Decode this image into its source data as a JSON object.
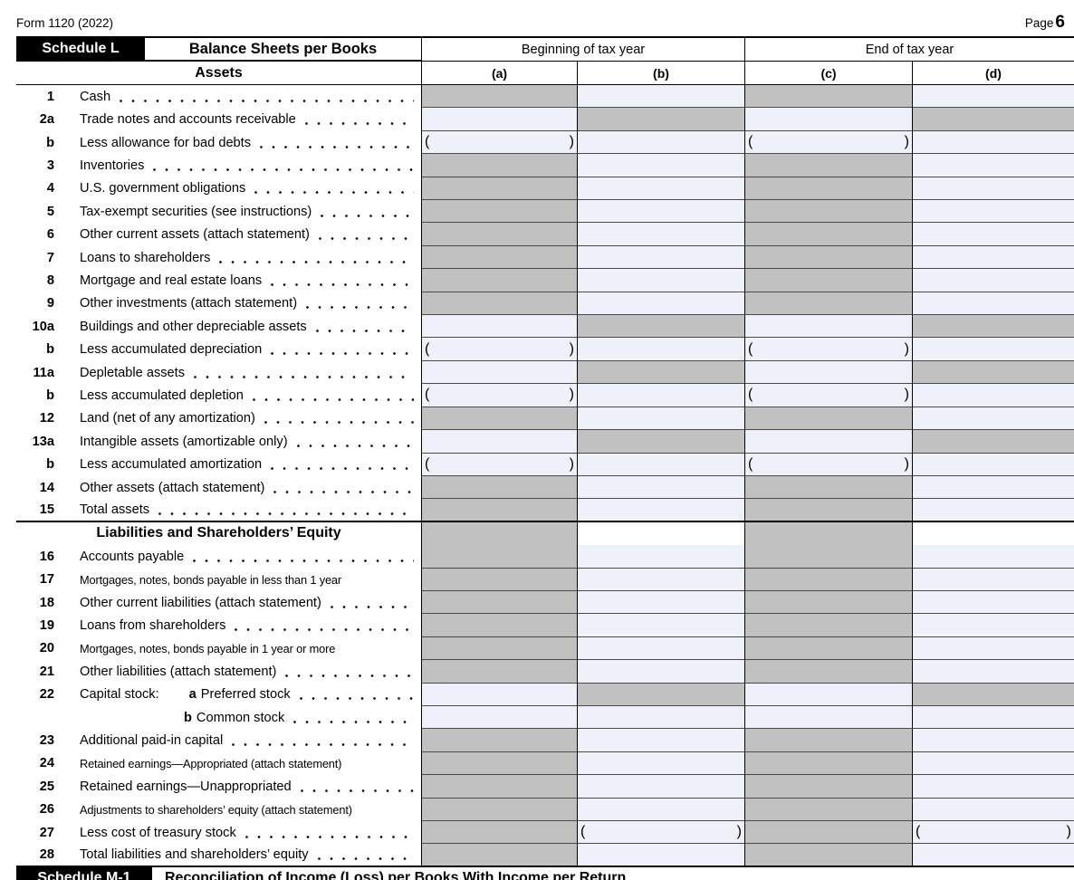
{
  "page": {
    "form_line": "Form 1120 (2022)",
    "page_label": "Page",
    "page_number": "6"
  },
  "schedule_l": {
    "badge": "Schedule L",
    "title": "Balance Sheets per Books",
    "column_groups": [
      "Beginning of tax year",
      "End of tax year"
    ],
    "column_letters": [
      "(a)",
      "(b)",
      "(c)",
      "(d)"
    ]
  },
  "glyphs": {
    "paren_open": "(",
    "paren_close": ")"
  },
  "colors": {
    "shaded_cell": "#c1c1c1",
    "entry_cell": "#eef1fa",
    "badge_bg": "#000000"
  },
  "sections": [
    {
      "header": "Assets",
      "rows": [
        {
          "id": "1",
          "num": "1",
          "label": "Cash",
          "cells": [
            "shaded",
            "entry",
            "shaded",
            "entry"
          ]
        },
        {
          "id": "2a",
          "num": "2a",
          "label": "Trade notes and accounts receivable",
          "cells": [
            "entry",
            "shaded",
            "entry",
            "shaded"
          ]
        },
        {
          "id": "2b",
          "num": "b",
          "label": "Less allowance for bad debts",
          "cells": [
            "paren",
            "entry",
            "paren",
            "entry"
          ]
        },
        {
          "id": "3",
          "num": "3",
          "label": "Inventories",
          "cells": [
            "shaded",
            "entry",
            "shaded",
            "entry"
          ]
        },
        {
          "id": "4",
          "num": "4",
          "label": "U.S. government obligations",
          "cells": [
            "shaded",
            "entry",
            "shaded",
            "entry"
          ]
        },
        {
          "id": "5",
          "num": "5",
          "label": "Tax-exempt securities (see instructions)",
          "cells": [
            "shaded",
            "entry",
            "shaded",
            "entry"
          ]
        },
        {
          "id": "6",
          "num": "6",
          "label": "Other current assets (attach statement)",
          "cells": [
            "shaded",
            "entry",
            "shaded",
            "entry"
          ]
        },
        {
          "id": "7",
          "num": "7",
          "label": "Loans to shareholders",
          "cells": [
            "shaded",
            "entry",
            "shaded",
            "entry"
          ]
        },
        {
          "id": "8",
          "num": "8",
          "label": "Mortgage and real estate loans",
          "cells": [
            "shaded",
            "entry",
            "shaded",
            "entry"
          ]
        },
        {
          "id": "9",
          "num": "9",
          "label": "Other investments (attach statement)",
          "cells": [
            "shaded",
            "entry",
            "shaded",
            "entry"
          ]
        },
        {
          "id": "10a",
          "num": "10a",
          "label": "Buildings and other depreciable assets",
          "cells": [
            "entry",
            "shaded",
            "entry",
            "shaded"
          ]
        },
        {
          "id": "10b",
          "num": "b",
          "label": "Less accumulated depreciation",
          "cells": [
            "paren",
            "entry",
            "paren",
            "entry"
          ]
        },
        {
          "id": "11a",
          "num": "11a",
          "label": "Depletable assets",
          "cells": [
            "entry",
            "shaded",
            "entry",
            "shaded"
          ]
        },
        {
          "id": "11b",
          "num": "b",
          "label": "Less accumulated depletion",
          "cells": [
            "paren",
            "entry",
            "paren",
            "entry"
          ]
        },
        {
          "id": "12",
          "num": "12",
          "label": "Land (net of any amortization)",
          "cells": [
            "shaded",
            "entry",
            "shaded",
            "entry"
          ]
        },
        {
          "id": "13a",
          "num": "13a",
          "label": "Intangible assets (amortizable only)",
          "cells": [
            "entry",
            "shaded",
            "entry",
            "shaded"
          ]
        },
        {
          "id": "13b",
          "num": "b",
          "label": "Less accumulated amortization",
          "cells": [
            "paren",
            "entry",
            "paren",
            "entry"
          ]
        },
        {
          "id": "14",
          "num": "14",
          "label": "Other assets (attach statement)",
          "cells": [
            "shaded",
            "entry",
            "shaded",
            "entry"
          ]
        },
        {
          "id": "15",
          "num": "15",
          "label": "Total assets",
          "cells": [
            "shaded",
            "entry",
            "shaded",
            "entry"
          ]
        }
      ]
    },
    {
      "header": "Liabilities and Shareholders’ Equity",
      "header_cells": [
        "shaded",
        "plain",
        "shaded",
        "plain"
      ],
      "rows": [
        {
          "id": "16",
          "num": "16",
          "label": "Accounts payable",
          "cells": [
            "shaded",
            "entry",
            "shaded",
            "entry"
          ]
        },
        {
          "id": "17",
          "num": "17",
          "label": "Mortgages, notes, bonds payable in less than 1 year",
          "dots": false,
          "cells": [
            "shaded",
            "entry",
            "shaded",
            "entry"
          ]
        },
        {
          "id": "18",
          "num": "18",
          "label": "Other current liabilities (attach statement)",
          "cells": [
            "shaded",
            "entry",
            "shaded",
            "entry"
          ]
        },
        {
          "id": "19",
          "num": "19",
          "label": "Loans from shareholders",
          "cells": [
            "shaded",
            "entry",
            "shaded",
            "entry"
          ]
        },
        {
          "id": "20",
          "num": "20",
          "label": "Mortgages, notes, bonds payable in 1 year or more",
          "dots": false,
          "cells": [
            "shaded",
            "entry",
            "shaded",
            "entry"
          ]
        },
        {
          "id": "21",
          "num": "21",
          "label": "Other liabilities (attach statement)",
          "cells": [
            "shaded",
            "entry",
            "shaded",
            "entry"
          ]
        },
        {
          "id": "22a",
          "num": "22",
          "label": "Capital stock:",
          "sub_letter": "a",
          "sub_label": "Preferred stock",
          "cells": [
            "entry",
            "shaded",
            "entry",
            "shaded"
          ]
        },
        {
          "id": "22b",
          "num": "",
          "label": "",
          "sub_letter": "b",
          "sub_label": "Common stock",
          "cells": [
            "entry",
            "entry",
            "entry",
            "entry"
          ]
        },
        {
          "id": "23",
          "num": "23",
          "label": "Additional paid-in capital",
          "cells": [
            "shaded",
            "entry",
            "shaded",
            "entry"
          ]
        },
        {
          "id": "24",
          "num": "24",
          "label": "Retained earnings—Appropriated (attach statement)",
          "dots": false,
          "cells": [
            "shaded",
            "entry",
            "shaded",
            "entry"
          ]
        },
        {
          "id": "25",
          "num": "25",
          "label": "Retained earnings—Unappropriated",
          "cells": [
            "shaded",
            "entry",
            "shaded",
            "entry"
          ]
        },
        {
          "id": "26",
          "num": "26",
          "label": "Adjustments to shareholders’ equity (attach statement)",
          "dots": false,
          "cells": [
            "shaded",
            "entry",
            "shaded",
            "entry"
          ]
        },
        {
          "id": "27",
          "num": "27",
          "label": "Less cost of treasury stock",
          "cells": [
            "shaded",
            "paren",
            "shaded",
            "paren"
          ]
        },
        {
          "id": "28",
          "num": "28",
          "label": "Total liabilities and shareholders’ equity",
          "cells": [
            "shaded",
            "entry",
            "shaded",
            "entry"
          ]
        }
      ]
    }
  ],
  "schedule_m1": {
    "badge": "Schedule M-1",
    "title": "Reconciliation of Income (Loss) per Books With Income per Return"
  }
}
